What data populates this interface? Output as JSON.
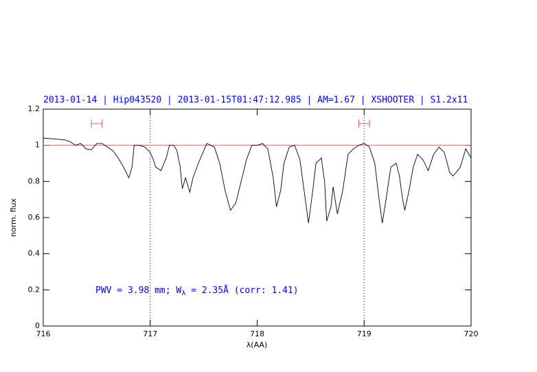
{
  "chart_data": {
    "type": "line",
    "title": "2013-01-14 | Hip043520 | 2013-01-15T01:47:12.985 | AM=1.67 | XSHOOTER | S1.2x11",
    "xlabel": "λ(AA)",
    "ylabel": "norm. flux",
    "annotation": [
      "PWV = 3.98 mm; W",
      "λ",
      " = 2.35Å (corr: 1.41)"
    ],
    "xlim": [
      716,
      720
    ],
    "ylim": [
      0,
      1.2
    ],
    "xticks": [
      716,
      717,
      718,
      719,
      720
    ],
    "yticks": [
      0,
      0.2,
      0.4,
      0.6,
      0.8,
      1,
      1.2
    ],
    "hline": 1,
    "hline_color": "#e06060",
    "vlines": [
      717,
      719
    ],
    "markers": [
      {
        "x0": 716.45,
        "x1": 716.55,
        "y": 1.12
      },
      {
        "x0": 718.95,
        "x1": 719.05,
        "y": 1.12
      }
    ],
    "marker_color": "#e06060",
    "series": [
      {
        "name": "flux",
        "color": "#000000",
        "x": [
          716.0,
          716.1,
          716.2,
          716.25,
          716.3,
          716.35,
          716.4,
          716.45,
          716.5,
          716.55,
          716.6,
          716.65,
          716.7,
          716.75,
          716.8,
          716.83,
          716.85,
          716.9,
          716.95,
          717.0,
          717.03,
          717.05,
          717.1,
          717.15,
          717.18,
          717.22,
          717.25,
          717.28,
          717.3,
          717.33,
          717.37,
          717.4,
          717.45,
          717.5,
          717.53,
          717.6,
          717.65,
          717.7,
          717.75,
          717.8,
          717.85,
          717.9,
          717.95,
          718.0,
          718.05,
          718.1,
          718.15,
          718.18,
          718.22,
          718.25,
          718.3,
          718.35,
          718.4,
          718.45,
          718.48,
          718.52,
          718.55,
          718.6,
          718.63,
          718.65,
          718.69,
          718.71,
          718.75,
          718.8,
          718.85,
          718.9,
          718.95,
          719.0,
          719.05,
          719.1,
          719.14,
          719.17,
          719.21,
          719.25,
          719.3,
          719.33,
          719.36,
          719.38,
          719.42,
          719.46,
          719.5,
          719.55,
          719.6,
          719.65,
          719.7,
          719.75,
          719.8,
          719.83,
          719.86,
          719.9,
          719.95,
          720.0
        ],
        "values": [
          1.04,
          1.035,
          1.03,
          1.02,
          1.0,
          1.01,
          0.98,
          0.975,
          1.01,
          1.01,
          0.99,
          0.97,
          0.93,
          0.88,
          0.82,
          0.88,
          1.0,
          1.0,
          0.99,
          0.96,
          0.92,
          0.88,
          0.86,
          0.93,
          1.0,
          1.0,
          0.97,
          0.88,
          0.76,
          0.82,
          0.74,
          0.82,
          0.9,
          0.97,
          1.01,
          0.99,
          0.9,
          0.75,
          0.64,
          0.68,
          0.8,
          0.92,
          1.0,
          1.0,
          1.01,
          0.98,
          0.82,
          0.66,
          0.75,
          0.9,
          0.99,
          1.0,
          0.92,
          0.7,
          0.57,
          0.75,
          0.9,
          0.93,
          0.8,
          0.58,
          0.66,
          0.77,
          0.62,
          0.75,
          0.95,
          0.98,
          1.0,
          1.01,
          0.99,
          0.9,
          0.7,
          0.57,
          0.72,
          0.88,
          0.9,
          0.83,
          0.7,
          0.64,
          0.75,
          0.88,
          0.95,
          0.92,
          0.86,
          0.95,
          0.99,
          0.96,
          0.85,
          0.83,
          0.85,
          0.88,
          0.98,
          0.93
        ]
      }
    ]
  }
}
